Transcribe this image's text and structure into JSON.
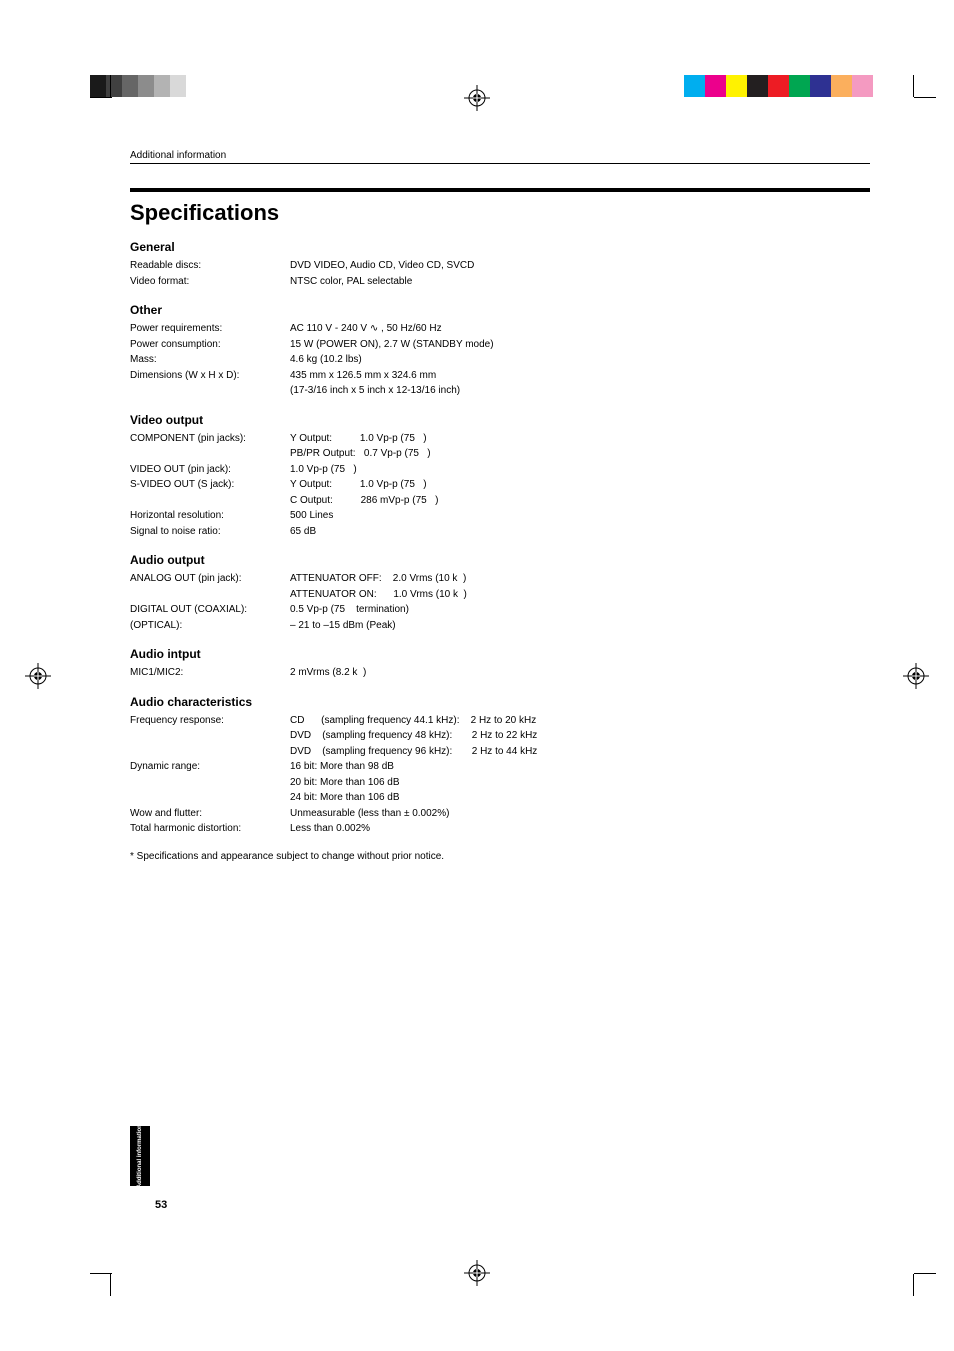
{
  "registration": {
    "swatch_left": [
      "#1a1a1a",
      "#404040",
      "#666666",
      "#8c8c8c",
      "#b3b3b3",
      "#d9d9d9",
      "#ffffff",
      "#ffffff",
      "#ffffff",
      "#ffffff"
    ],
    "swatch_right": [
      "#00aeef",
      "#ec008c",
      "#fff200",
      "#231f20",
      "#ed1c24",
      "#00a651",
      "#2e3192",
      "#fbaf5d",
      "#f49ac1",
      "#ffffff"
    ]
  },
  "header_small": "Additional information",
  "title": "Specifications",
  "sections": {
    "general": {
      "head": "General",
      "rows": [
        {
          "label": "Readable discs:",
          "val": "DVD VIDEO, Audio CD, Video CD, SVCD"
        },
        {
          "label": "Video format:",
          "val": "NTSC color, PAL selectable"
        }
      ]
    },
    "other": {
      "head": "Other",
      "rows": [
        {
          "label": "Power requirements:",
          "val": "AC 110 V - 240 V ∿ , 50 Hz/60 Hz"
        },
        {
          "label": "Power consumption:",
          "val": "15 W (POWER ON), 2.7 W (STANDBY mode)"
        },
        {
          "label": "Mass:",
          "val": "4.6 kg (10.2 lbs)"
        },
        {
          "label": "Dimensions (W x H x D):",
          "val": "435 mm x 126.5 mm x 324.6 mm\n(17-3/16 inch x 5 inch x 12-13/16 inch)"
        }
      ]
    },
    "video": {
      "head": "Video output",
      "rows": [
        {
          "label": "COMPONENT (pin jacks):",
          "val": "Y Output:          1.0 Vp-p (75   )\nPB/PR Output:   0.7 Vp-p (75   )"
        },
        {
          "label": "VIDEO OUT (pin jack):",
          "val": "1.0 Vp-p (75   )"
        },
        {
          "label": "S-VIDEO OUT (S jack):",
          "val": "Y Output:          1.0 Vp-p (75   )\nC Output:          286 mVp-p (75   )"
        },
        {
          "label": "Horizontal resolution:",
          "val": "500 Lines"
        },
        {
          "label": "Signal to noise ratio:",
          "val": "65 dB"
        }
      ]
    },
    "audio_out": {
      "head": "Audio output",
      "rows": [
        {
          "label": "ANALOG OUT (pin jack):",
          "val": "ATTENUATOR OFF:    2.0 Vrms (10 k  )\nATTENUATOR ON:      1.0 Vrms (10 k  )"
        },
        {
          "label": "DIGITAL OUT (COAXIAL):",
          "val": "0.5 Vp-p (75    termination)"
        },
        {
          "label": "                     (OPTICAL):",
          "val": "– 21 to –15 dBm (Peak)"
        }
      ]
    },
    "audio_in": {
      "head": "Audio intput",
      "rows": [
        {
          "label": "MIC1/MIC2:",
          "val": "2 mVrms (8.2 k  )"
        }
      ]
    },
    "audio_char": {
      "head": "Audio characteristics",
      "rows": [
        {
          "label": "Frequency response:",
          "val": "CD      (sampling frequency 44.1 kHz):    2 Hz to 20 kHz\nDVD    (sampling frequency 48 kHz):       2 Hz to 22 kHz\nDVD    (sampling frequency 96 kHz):       2 Hz to 44 kHz"
        },
        {
          "label": "Dynamic range:",
          "val": "16 bit: More than 98 dB\n20 bit: More than 106 dB\n24 bit: More than 106 dB"
        },
        {
          "label": "Wow and flutter:",
          "val": "Unmeasurable (less than ± 0.002%)"
        },
        {
          "label": "Total harmonic distortion:",
          "val": "Less than 0.002%"
        }
      ]
    }
  },
  "footnote": "* Specifications and appearance subject to change without prior notice.",
  "side_tab": "Additional\ninformation",
  "page_number": "53"
}
